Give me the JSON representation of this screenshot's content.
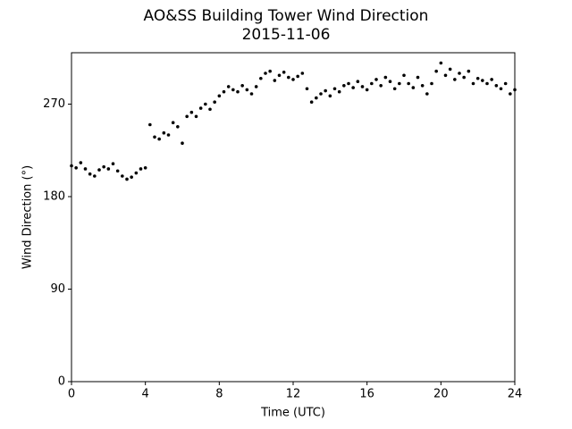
{
  "chart_data": {
    "type": "scatter",
    "title": "AO&SS Building Tower Wind Direction",
    "subtitle": "2015-11-06",
    "x_label": "Time (UTC)",
    "y_label": "Wind Direction (°)",
    "color": "#000000",
    "xlim": [
      0,
      24
    ],
    "xticks": [
      0,
      4,
      8,
      12,
      16,
      20,
      24
    ],
    "ylim": [
      0,
      320
    ],
    "yticks": [
      0,
      90,
      180,
      270
    ],
    "x": [
      0,
      0.25,
      0.5,
      0.75,
      1,
      1.25,
      1.5,
      1.75,
      2,
      2.25,
      2.5,
      2.75,
      3,
      3.25,
      3.5,
      3.75,
      4,
      4.25,
      4.5,
      4.75,
      5,
      5.25,
      5.5,
      5.75,
      6,
      6.25,
      6.5,
      6.75,
      7,
      7.25,
      7.5,
      7.75,
      8,
      8.25,
      8.5,
      8.75,
      9,
      9.25,
      9.5,
      9.75,
      10,
      10.25,
      10.5,
      10.75,
      11,
      11.25,
      11.5,
      11.75,
      12,
      12.25,
      12.5,
      12.75,
      13,
      13.25,
      13.5,
      13.75,
      14,
      14.25,
      14.5,
      14.75,
      15,
      15.25,
      15.5,
      15.75,
      16,
      16.25,
      16.5,
      16.75,
      17,
      17.25,
      17.5,
      17.75,
      18,
      18.25,
      18.5,
      18.75,
      19,
      19.25,
      19.5,
      19.75,
      20,
      20.25,
      20.5,
      20.75,
      21,
      21.25,
      21.5,
      21.75,
      22,
      22.25,
      22.5,
      22.75,
      23,
      23.25,
      23.5,
      23.75,
      24
    ],
    "values": [
      210,
      208,
      213,
      207,
      202,
      200,
      206,
      209,
      207,
      212,
      205,
      200,
      197,
      199,
      203,
      207,
      208,
      250,
      238,
      236,
      242,
      240,
      252,
      248,
      232,
      258,
      262,
      258,
      266,
      270,
      265,
      272,
      278,
      282,
      287,
      284,
      282,
      288,
      284,
      280,
      287,
      295,
      300,
      302,
      293,
      298,
      301,
      296,
      294,
      297,
      300,
      285,
      272,
      276,
      280,
      283,
      278,
      285,
      282,
      288,
      290,
      286,
      292,
      287,
      284,
      290,
      294,
      288,
      296,
      292,
      285,
      290,
      298,
      290,
      286,
      296,
      288,
      280,
      290,
      302,
      310,
      298,
      304,
      294,
      300,
      296,
      302,
      290,
      295,
      293,
      290,
      294,
      288,
      285,
      290,
      280,
      284
    ]
  }
}
